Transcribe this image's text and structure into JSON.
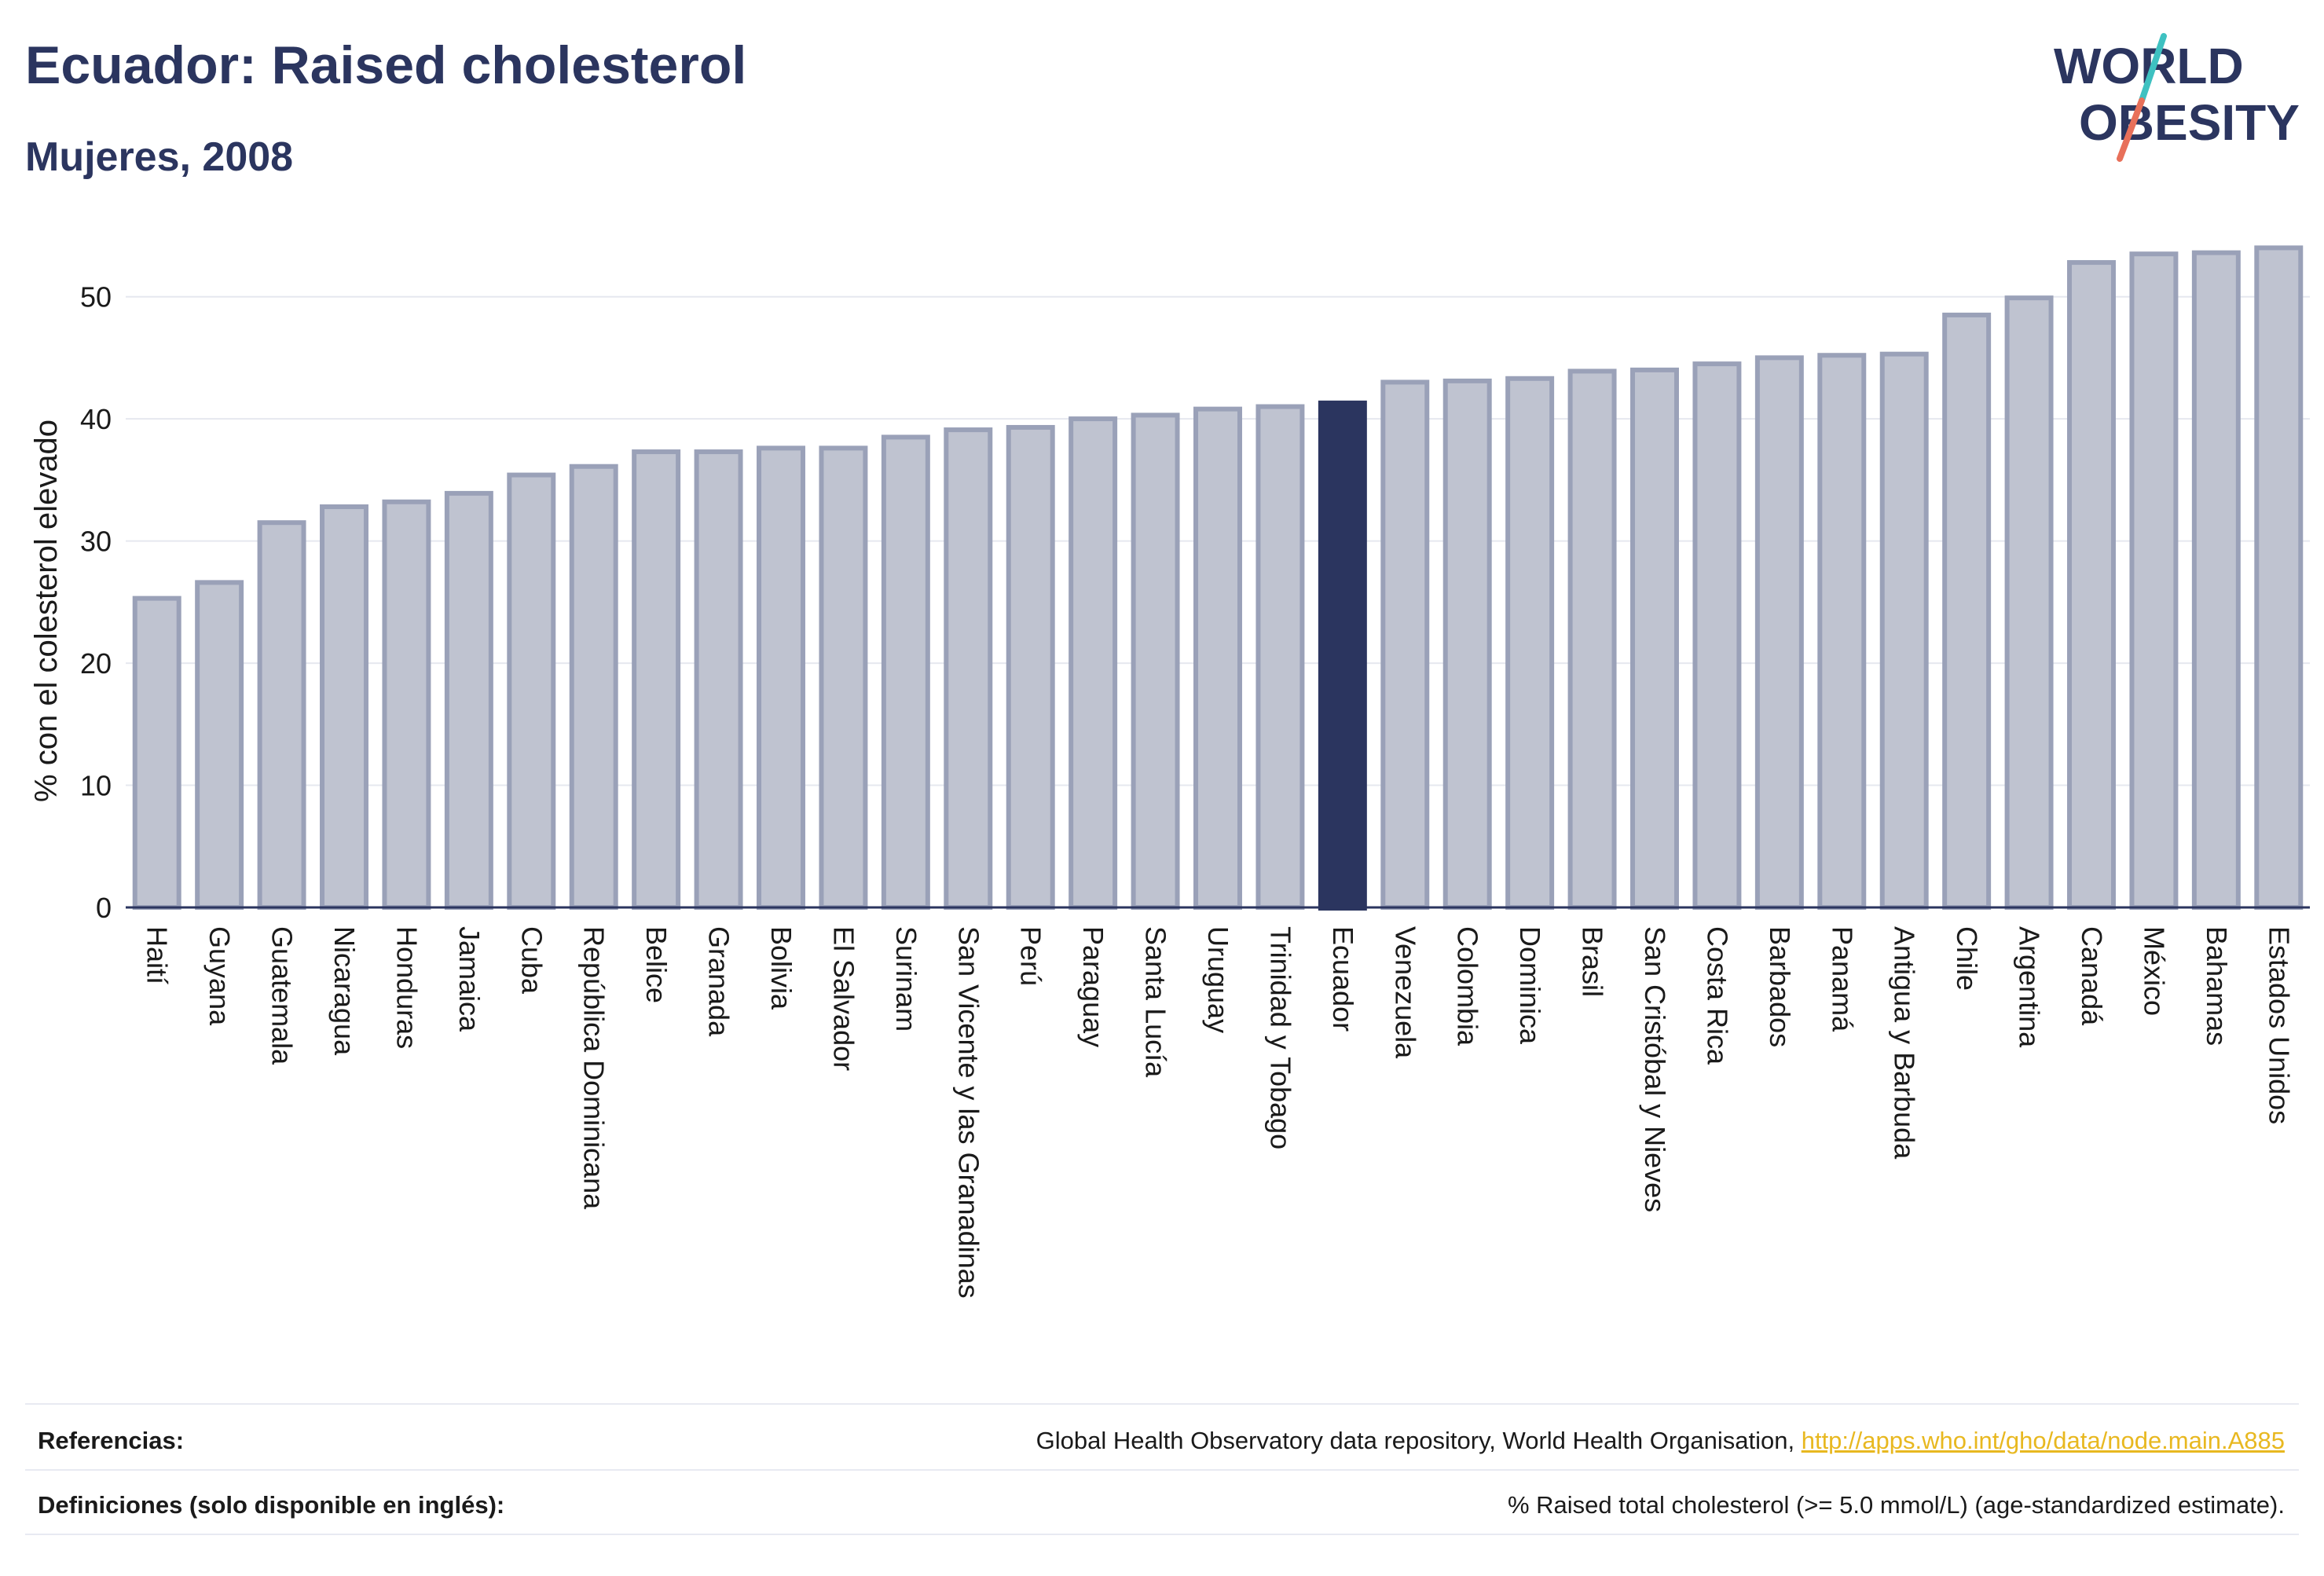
{
  "header": {
    "title": "Ecuador: Raised cholesterol",
    "subtitle": "Mujeres, 2008"
  },
  "logo": {
    "line1": "WORLD",
    "line2": "OBESITY"
  },
  "colors": {
    "bar": "#bfc3d0",
    "bar_border": "#9aa1b8",
    "highlight": "#2b355f",
    "grid": "#e6e8ef",
    "axis": "#2b355f",
    "logo_slash_teal": "#3ec1c1",
    "logo_slash_coral": "#e8705a"
  },
  "chart_data": {
    "type": "bar",
    "title": "Ecuador: Raised cholesterol",
    "subtitle": "Mujeres, 2008",
    "xlabel": "",
    "ylabel": "% con el colesterol elevado",
    "ylim": [
      0,
      55
    ],
    "yticks": [
      0,
      10,
      20,
      30,
      40,
      50
    ],
    "grid": true,
    "highlight": "Ecuador",
    "categories": [
      "Haití",
      "Guyana",
      "Guatemala",
      "Nicaragua",
      "Honduras",
      "Jamaica",
      "Cuba",
      "República Dominicana",
      "Belice",
      "Granada",
      "Bolivia",
      "El Salvador",
      "Surinam",
      "San Vicente y las Granadinas",
      "Perú",
      "Paraguay",
      "Santa Lucía",
      "Uruguay",
      "Trinidad y Tobago",
      "Ecuador",
      "Venezuela",
      "Colombia",
      "Dominica",
      "Brasil",
      "San Cristóbal y Nieves",
      "Costa Rica",
      "Barbados",
      "Panamá",
      "Antigua y Barbuda",
      "Chile",
      "Argentina",
      "Canadá",
      "México",
      "Bahamas",
      "Estados Unidos"
    ],
    "values": [
      25.5,
      26.8,
      31.7,
      33.0,
      33.4,
      34.1,
      35.6,
      36.3,
      37.5,
      37.5,
      37.8,
      37.8,
      38.7,
      39.3,
      39.5,
      40.2,
      40.5,
      41.0,
      41.2,
      41.5,
      43.2,
      43.3,
      43.5,
      44.1,
      44.2,
      44.7,
      45.2,
      45.4,
      45.5,
      48.7,
      50.1,
      53.0,
      53.7,
      53.8,
      54.2
    ]
  },
  "footer": {
    "references_label": "Referencias:",
    "references_text": "Global Health Observatory data repository, World Health Organisation, ",
    "references_link": "http://apps.who.int/gho/data/node.main.A885",
    "definitions_label": "Definiciones (solo disponible en inglés):",
    "definitions_text": "% Raised total cholesterol (>= 5.0 mmol/L) (age-standardized estimate)."
  }
}
